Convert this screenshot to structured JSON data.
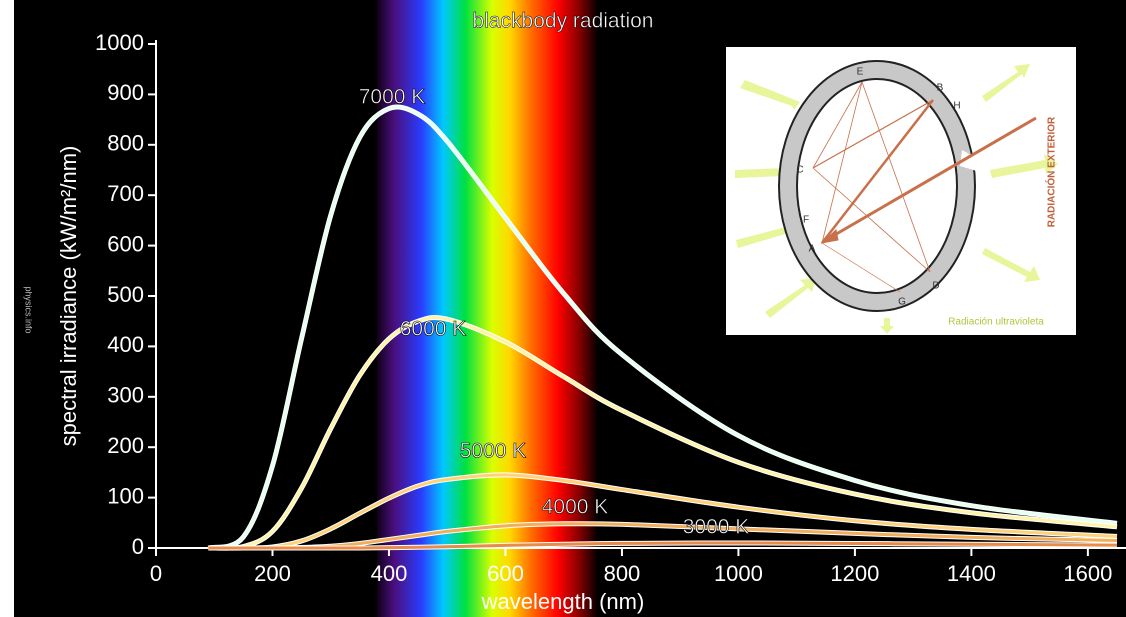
{
  "chart_data": {
    "type": "line",
    "title": "blackbody radiation",
    "x_label": "wavelength (nm)",
    "y_label": "spectral irradiance (kW/m²/nm)",
    "source_note": "physics.info",
    "x": [
      90,
      150,
      200,
      250,
      300,
      350,
      400,
      450,
      500,
      600,
      700,
      800,
      1000,
      1200,
      1400,
      1650
    ],
    "series": [
      {
        "name": "7000 K",
        "color": "#e6fff0",
        "values": [
          0,
          22,
          163,
          416,
          660,
          815,
          872,
          861,
          807,
          655,
          505,
          384,
          223,
          134,
          84,
          49
        ]
      },
      {
        "name": "6000 K",
        "color": "#fff3a8",
        "values": [
          0,
          3,
          33,
          119,
          237,
          343,
          415,
          450,
          454,
          409,
          340,
          273,
          170,
          107,
          70,
          42
        ]
      },
      {
        "name": "5000 K",
        "color": "#ffd27a",
        "values": [
          0,
          0,
          2,
          14,
          38,
          69,
          99,
          123,
          136,
          145,
          134,
          116,
          81,
          54,
          37,
          23
        ]
      },
      {
        "name": "4000 K",
        "color": "#f2ae5a",
        "values": [
          0,
          0,
          0,
          1,
          3.5,
          9,
          17,
          25,
          33,
          44,
          48,
          47,
          38,
          29,
          21,
          15
        ]
      },
      {
        "name": "3000 K",
        "color": "#e88a48",
        "values": [
          0,
          0,
          0,
          0,
          0,
          0,
          0.7,
          1.5,
          2.6,
          5.2,
          7.5,
          9.1,
          10,
          9,
          7.5,
          5.8
        ]
      }
    ],
    "xlim": [
      0,
      1650
    ],
    "ylim": [
      0,
      1000
    ],
    "xticks": [
      0,
      200,
      400,
      600,
      800,
      1000,
      1200,
      1400,
      1600
    ],
    "yticks": [
      0,
      100,
      200,
      300,
      400,
      500,
      600,
      700,
      800,
      900,
      1000
    ],
    "grid": false
  },
  "inset": {
    "points": [
      "E",
      "B",
      "H",
      "C",
      "F",
      "A",
      "D",
      "G"
    ],
    "side_label": "RADIACIÓN EXTERIOR",
    "caption": "Radiación ultravioleta"
  }
}
